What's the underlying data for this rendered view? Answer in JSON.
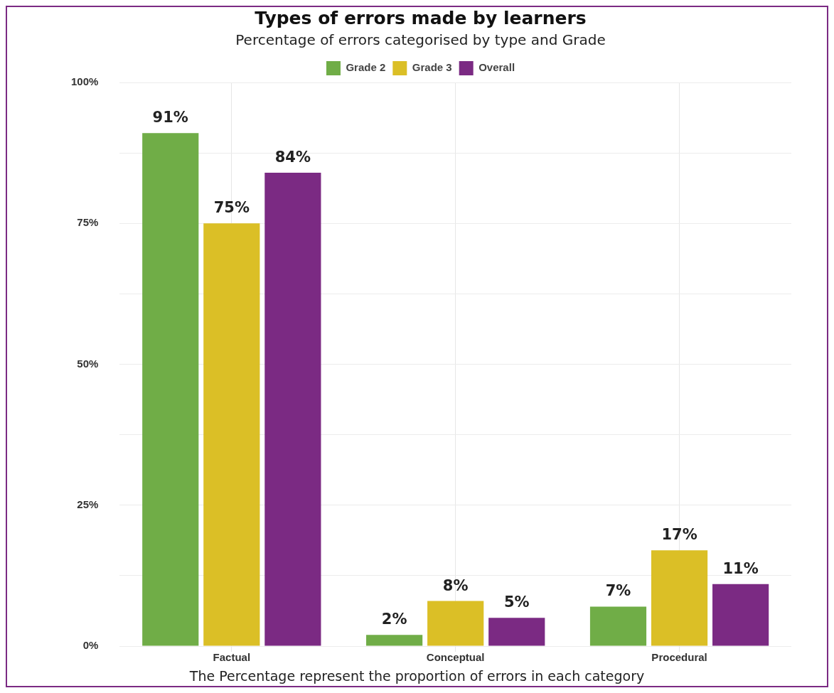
{
  "chart_data": {
    "type": "bar",
    "title": "Types of errors made by learners",
    "subtitle": "Percentage of errors categorised by type and Grade",
    "categories": [
      "Factual",
      "Conceptual",
      "Procedural"
    ],
    "series": [
      {
        "name": "Grade 2",
        "color": "#70ad47",
        "values": [
          91,
          2,
          7
        ]
      },
      {
        "name": "Grade 3",
        "color": "#dbbf26",
        "values": [
          75,
          8,
          17
        ]
      },
      {
        "name": "Overall",
        "color": "#7b2a83",
        "values": [
          84,
          5,
          11
        ]
      }
    ],
    "ylim": [
      0,
      100
    ],
    "yticks": [
      {
        "value": 0,
        "label": "0%"
      },
      {
        "value": 12.5,
        "label": null
      },
      {
        "value": 25,
        "label": "25%"
      },
      {
        "value": 37.5,
        "label": null
      },
      {
        "value": 50,
        "label": "50%"
      },
      {
        "value": 62.5,
        "label": null
      },
      {
        "value": 75,
        "label": "75%"
      },
      {
        "value": 87.5,
        "label": null
      },
      {
        "value": 100,
        "label": "100%"
      }
    ],
    "value_labels": [
      [
        "91%",
        "2%",
        "7%"
      ],
      [
        "75%",
        "8%",
        "17%"
      ],
      [
        "84%",
        "5%",
        "11%"
      ]
    ],
    "annotations": [
      "The Percentage represent the proportion of errors in each category"
    ],
    "grid": true,
    "legend": "top"
  }
}
